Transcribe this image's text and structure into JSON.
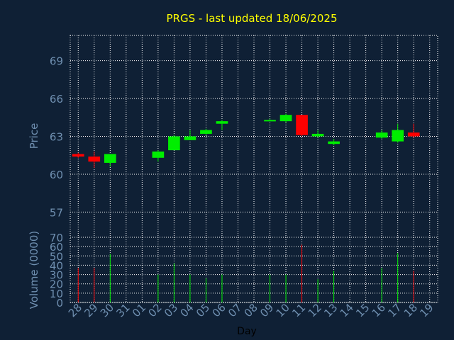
{
  "chart_data": {
    "type": "candlestick",
    "title": "PRGS - last updated 18/06/2025",
    "price_axis": {
      "label": "Price",
      "ylim": [
        55,
        71
      ],
      "ticks": [
        57,
        60,
        63,
        66,
        69
      ]
    },
    "volume_axis": {
      "label": "Volume (0000)",
      "ylim": [
        0,
        70
      ],
      "ticks": [
        0,
        10,
        20,
        30,
        40,
        50,
        60,
        70
      ]
    },
    "xlabel": "Day",
    "x_ticks": [
      "28",
      "29",
      "30",
      "31",
      "01",
      "02",
      "03",
      "04",
      "05",
      "06",
      "07",
      "08",
      "09",
      "10",
      "11",
      "12",
      "13",
      "14",
      "15",
      "16",
      "17",
      "18",
      "19"
    ],
    "grid": true,
    "colors": {
      "background": "#0f2035",
      "title": "#ffff00",
      "axis_text": "#6f8fb0",
      "up": "#00ee00",
      "down": "#ff0000",
      "grid": "#ffffff",
      "xlabel": "#000000"
    },
    "candles": [
      {
        "day": "28",
        "open": 61.6,
        "high": 61.7,
        "low": 61.3,
        "close": 61.4,
        "volume": 37
      },
      {
        "day": "29",
        "open": 61.4,
        "high": 61.8,
        "low": 60.5,
        "close": 61.0,
        "volume": 37
      },
      {
        "day": "30",
        "open": 60.9,
        "high": 61.6,
        "low": 60.6,
        "close": 61.6,
        "volume": 52
      },
      {
        "day": "02",
        "open": 61.3,
        "high": 61.9,
        "low": 61.0,
        "close": 61.8,
        "volume": 30
      },
      {
        "day": "03",
        "open": 61.9,
        "high": 63.1,
        "low": 61.9,
        "close": 63.0,
        "volume": 42
      },
      {
        "day": "04",
        "open": 62.7,
        "high": 63.5,
        "low": 62.7,
        "close": 63.0,
        "volume": 30
      },
      {
        "day": "05",
        "open": 63.2,
        "high": 63.6,
        "low": 63.1,
        "close": 63.5,
        "volume": 26
      },
      {
        "day": "06",
        "open": 64.0,
        "high": 64.3,
        "low": 63.5,
        "close": 64.2,
        "volume": 30
      },
      {
        "day": "09",
        "open": 64.3,
        "high": 64.4,
        "low": 64.2,
        "close": 64.3,
        "volume": 30
      },
      {
        "day": "10",
        "open": 64.2,
        "high": 64.8,
        "low": 64.1,
        "close": 64.7,
        "volume": 30
      },
      {
        "day": "11",
        "open": 64.7,
        "high": 64.7,
        "low": 63.0,
        "close": 63.1,
        "volume": 62
      },
      {
        "day": "12",
        "open": 63.0,
        "high": 63.5,
        "low": 62.9,
        "close": 63.2,
        "volume": 25
      },
      {
        "day": "13",
        "open": 62.4,
        "high": 62.8,
        "low": 62.3,
        "close": 62.6,
        "volume": 34
      },
      {
        "day": "16",
        "open": 62.9,
        "high": 63.5,
        "low": 62.8,
        "close": 63.3,
        "volume": 37
      },
      {
        "day": "17",
        "open": 62.6,
        "high": 64.0,
        "low": 62.5,
        "close": 63.5,
        "volume": 53
      },
      {
        "day": "18",
        "open": 63.3,
        "high": 64.0,
        "low": 62.9,
        "close": 63.0,
        "volume": 34
      }
    ]
  }
}
